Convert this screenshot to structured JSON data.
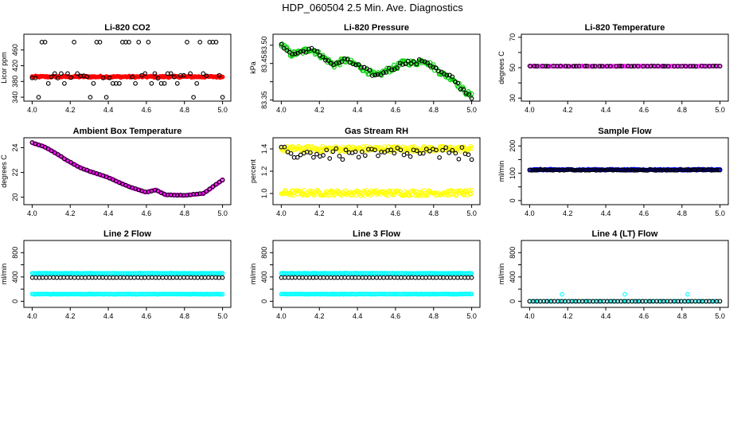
{
  "page_title": "HDP_060504  2.5 Min. Ave. Diagnostics",
  "colors": {
    "black": "#000000",
    "red": "#ff0000",
    "magenta": "#ff00ff",
    "green": "#00cc00",
    "yellow": "#ffff00",
    "blue": "#0000ff",
    "cyan": "#00ffff"
  },
  "chart_data": [
    {
      "type": "scatter",
      "title": "Li-820 CO2",
      "ylabel": "Licor ppm",
      "xlim": [
        4.0,
        5.0
      ],
      "ylim": [
        330,
        500
      ],
      "xticks": [
        "4.0",
        "4.2",
        "4.4",
        "4.6",
        "4.8",
        "5.0"
      ],
      "yticks": [
        340,
        380,
        420,
        460
      ],
      "series": [
        {
          "name": "co2-line",
          "color": "#ff0000",
          "fill": true,
          "model": "const",
          "params": [
            392,
            2,
            0
          ],
          "n": 160
        },
        {
          "name": "co2-scatter",
          "color": "#000000",
          "model": "levels",
          "params": [
            340,
            375,
            400,
            480,
            392
          ],
          "n": 60
        }
      ]
    },
    {
      "type": "scatter",
      "title": "Li-820 Pressure",
      "ylabel": "kPa",
      "xlim": [
        4.0,
        5.0
      ],
      "ylim": [
        83.347,
        83.53
      ],
      "xticks": [
        "4.0",
        "4.2",
        "4.4",
        "4.6",
        "4.8",
        "5.0"
      ],
      "yticks": [
        83.35,
        83.4,
        83.45,
        83.5
      ],
      "yticklabels": [
        "83.35",
        "",
        "83.45",
        "83.50"
      ],
      "series": [
        {
          "name": "pressure-green",
          "color": "#00cc00",
          "model": "pressure",
          "params": [
            0.008
          ],
          "n": 170
        },
        {
          "name": "pressure-black",
          "color": "#000000",
          "model": "pressure",
          "params": [
            0.006
          ],
          "n": 70
        }
      ]
    },
    {
      "type": "scatter",
      "title": "Li-820 Temperature",
      "ylabel": "degrees C",
      "xlim": [
        4.0,
        5.0
      ],
      "ylim": [
        28,
        72
      ],
      "xticks": [
        "4.0",
        "4.2",
        "4.4",
        "4.6",
        "4.8",
        "5.0"
      ],
      "yticks": [
        30,
        40,
        50,
        60,
        70
      ],
      "yticklabels": [
        "30",
        "",
        "50",
        "",
        "70"
      ],
      "series": [
        {
          "name": "temp-magenta",
          "color": "#ff00ff",
          "model": "const",
          "params": [
            51,
            0.1,
            0
          ],
          "n": 120
        },
        {
          "name": "temp-black",
          "color": "#000000",
          "model": "const",
          "params": [
            51,
            0.1,
            0.15
          ],
          "n": 50
        }
      ]
    },
    {
      "type": "scatter",
      "title": "Ambient Box Temperature",
      "ylabel": "degrees C",
      "xlim": [
        4.0,
        5.0
      ],
      "ylim": [
        19.4,
        24.8
      ],
      "xticks": [
        "4.0",
        "4.2",
        "4.4",
        "4.6",
        "4.8",
        "5.0"
      ],
      "yticks": [
        20,
        22,
        24
      ],
      "series": [
        {
          "name": "ambient-magenta",
          "color": "#ff00ff",
          "model": "ambient",
          "params": [
            0.02
          ],
          "n": 150
        },
        {
          "name": "ambient-black",
          "color": "#000000",
          "model": "ambient",
          "params": [
            0.02
          ],
          "n": 60
        }
      ]
    },
    {
      "type": "scatter",
      "title": "Gas Stream RH",
      "ylabel": "percent",
      "xlim": [
        4.0,
        5.0
      ],
      "ylim": [
        0.9,
        1.5
      ],
      "xticks": [
        "4.0",
        "4.2",
        "4.4",
        "4.6",
        "4.8",
        "5.0"
      ],
      "yticks": [
        1.0,
        1.2,
        1.4
      ],
      "yticklabels": [
        "1.0",
        "1.2",
        "1.4"
      ],
      "series": [
        {
          "name": "rh-yellow-high",
          "color": "#ffff00",
          "model": "const",
          "params": [
            1.4,
            0.025,
            0
          ],
          "n": 200
        },
        {
          "name": "rh-yellow-low",
          "color": "#ffff00",
          "model": "const",
          "params": [
            1.005,
            0.025,
            0
          ],
          "n": 200
        },
        {
          "name": "rh-black",
          "color": "#000000",
          "model": "rh",
          "params": [
            0.02
          ],
          "n": 60
        }
      ]
    },
    {
      "type": "scatter",
      "title": "Sample Flow",
      "ylabel": "ml/min",
      "xlim": [
        4.0,
        5.0
      ],
      "ylim": [
        -15,
        230
      ],
      "xticks": [
        "4.0",
        "4.2",
        "4.4",
        "4.6",
        "4.8",
        "5.0"
      ],
      "yticks": [
        0,
        50,
        100,
        150,
        200
      ],
      "yticklabels": [
        "0",
        "",
        "100",
        "",
        "200"
      ],
      "series": [
        {
          "name": "sample-blue",
          "color": "#0000ff",
          "model": "const",
          "params": [
            113,
            2,
            0
          ],
          "n": 180
        },
        {
          "name": "sample-black",
          "color": "#000000",
          "model": "const",
          "params": [
            112,
            1.5,
            0
          ],
          "n": 90
        }
      ]
    },
    {
      "type": "scatter",
      "title": "Line 2 Flow",
      "ylabel": "ml/min",
      "xlim": [
        4.0,
        5.0
      ],
      "ylim": [
        -100,
        1000
      ],
      "xticks": [
        "4.0",
        "4.2",
        "4.4",
        "4.6",
        "4.8",
        "5.0"
      ],
      "yticks": [
        0,
        200,
        400,
        600,
        800
      ],
      "yticklabels": [
        "0",
        "",
        "400",
        "",
        "800"
      ],
      "series": [
        {
          "name": "line2-cyan-high",
          "color": "#00ffff",
          "model": "const",
          "params": [
            460,
            3,
            0
          ],
          "n": 160
        },
        {
          "name": "line2-cyan-low",
          "color": "#00ffff",
          "model": "const",
          "params": [
            118,
            3,
            0
          ],
          "n": 160
        },
        {
          "name": "line2-black",
          "color": "#000000",
          "model": "const",
          "params": [
            390,
            1,
            0.02
          ],
          "n": 55
        }
      ]
    },
    {
      "type": "scatter",
      "title": "Line 3 Flow",
      "ylabel": "ml/min",
      "xlim": [
        4.0,
        5.0
      ],
      "ylim": [
        -100,
        1000
      ],
      "xticks": [
        "4.0",
        "4.2",
        "4.4",
        "4.6",
        "4.8",
        "5.0"
      ],
      "yticks": [
        0,
        200,
        400,
        600,
        800
      ],
      "yticklabels": [
        "0",
        "",
        "400",
        "",
        "800"
      ],
      "series": [
        {
          "name": "line3-cyan-high",
          "color": "#00ffff",
          "model": "const",
          "params": [
            460,
            3,
            0
          ],
          "n": 160
        },
        {
          "name": "line3-cyan-low",
          "color": "#00ffff",
          "model": "const",
          "params": [
            118,
            3,
            0
          ],
          "n": 160
        },
        {
          "name": "line3-black",
          "color": "#000000",
          "model": "const",
          "params": [
            390,
            1,
            0.02
          ],
          "n": 55
        }
      ]
    },
    {
      "type": "scatter",
      "title": "Line 4 (LT) Flow",
      "ylabel": "ml/min",
      "xlim": [
        4.0,
        5.0
      ],
      "ylim": [
        -100,
        1000
      ],
      "xticks": [
        "4.0",
        "4.2",
        "4.4",
        "4.6",
        "4.8",
        "5.0"
      ],
      "yticks": [
        0,
        200,
        400,
        600,
        800
      ],
      "yticklabels": [
        "0",
        "",
        "400",
        "",
        "800"
      ],
      "series": [
        {
          "name": "line4-cyan",
          "color": "#00ffff",
          "model": "const",
          "params": [
            0,
            0.5,
            0
          ],
          "n": 70
        },
        {
          "name": "line4-black",
          "color": "#000000",
          "model": "const",
          "params": [
            0,
            0.5,
            0.02
          ],
          "n": 55
        },
        {
          "name": "line4-cyan-spikes",
          "color": "#00ffff",
          "model": "points",
          "params": [
            4.17,
            115,
            4.5,
            115,
            4.83,
            115
          ],
          "n": 3
        }
      ]
    }
  ]
}
